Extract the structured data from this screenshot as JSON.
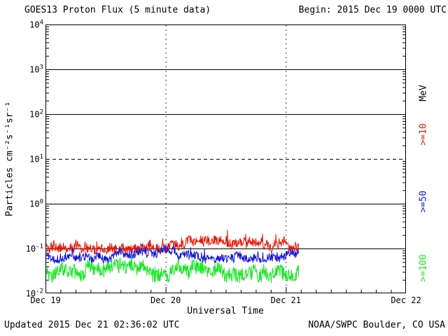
{
  "header": {
    "title": "GOES13 Proton Flux (5 minute data)",
    "begin_label": "Begin: 2015 Dec 19 0000 UTC"
  },
  "footer": {
    "updated": "Updated 2015 Dec 21 02:36:02 UTC",
    "source": "NOAA/SWPC Boulder, CO USA"
  },
  "chart_data": {
    "type": "line",
    "title": "GOES13 Proton Flux (5 minute data)",
    "xlabel": "Universal Time",
    "ylabel": "Particles cm⁻²s⁻¹sr⁻¹",
    "y_scale": "log10",
    "ylim": [
      0.01,
      10000
    ],
    "y_tick_exponents": [
      4,
      3,
      2,
      1,
      0,
      -1,
      -2
    ],
    "x_tick_labels": [
      "Dec 19",
      "Dec 20",
      "Dec 21",
      "Dec 22"
    ],
    "x_span_days": 3,
    "grid": {
      "solid_decades": [
        3,
        2,
        0,
        -1
      ],
      "dashed_decades": [
        1
      ],
      "vertical_dotted_at_days": [
        1,
        2
      ]
    },
    "right_axis_labels": [
      {
        "text": "MeV",
        "color": "#000000"
      },
      {
        "text": ">=10",
        "color": "#e81400"
      },
      {
        "text": ">=50",
        "color": "#1414dd"
      },
      {
        "text": ">=100",
        "color": "#17e623"
      }
    ],
    "data_start_label": "2015 Dec 19 0000 UTC",
    "data_end_days_from_start": 2.108,
    "sample_interval_minutes": 5,
    "series": [
      {
        "name": ">=10 MeV",
        "color": "#e81400",
        "approx_flux_range": [
          0.08,
          0.3
        ],
        "base_log10": -0.92,
        "jitter_log10": 0.1,
        "walk_log10": 0.07,
        "spike_prob": 0.05,
        "spike_log10": 0.22,
        "clamp_log10": [
          -1.12,
          -0.55
        ],
        "seed": 11
      },
      {
        "name": ">=50 MeV",
        "color": "#1414dd",
        "approx_flux_range": [
          0.04,
          0.14
        ],
        "base_log10": -1.13,
        "jitter_log10": 0.09,
        "walk_log10": 0.06,
        "spike_prob": 0.03,
        "spike_log10": 0.14,
        "clamp_log10": [
          -1.42,
          -0.88
        ],
        "seed": 27
      },
      {
        "name": ">=100 MeV",
        "color": "#17e623",
        "approx_flux_range": [
          0.013,
          0.08
        ],
        "base_log10": -1.5,
        "jitter_log10": 0.16,
        "walk_log10": 0.08,
        "spike_prob": 0.03,
        "spike_log10": 0.15,
        "clamp_log10": [
          -1.88,
          -1.12
        ],
        "seed": 42
      }
    ]
  }
}
